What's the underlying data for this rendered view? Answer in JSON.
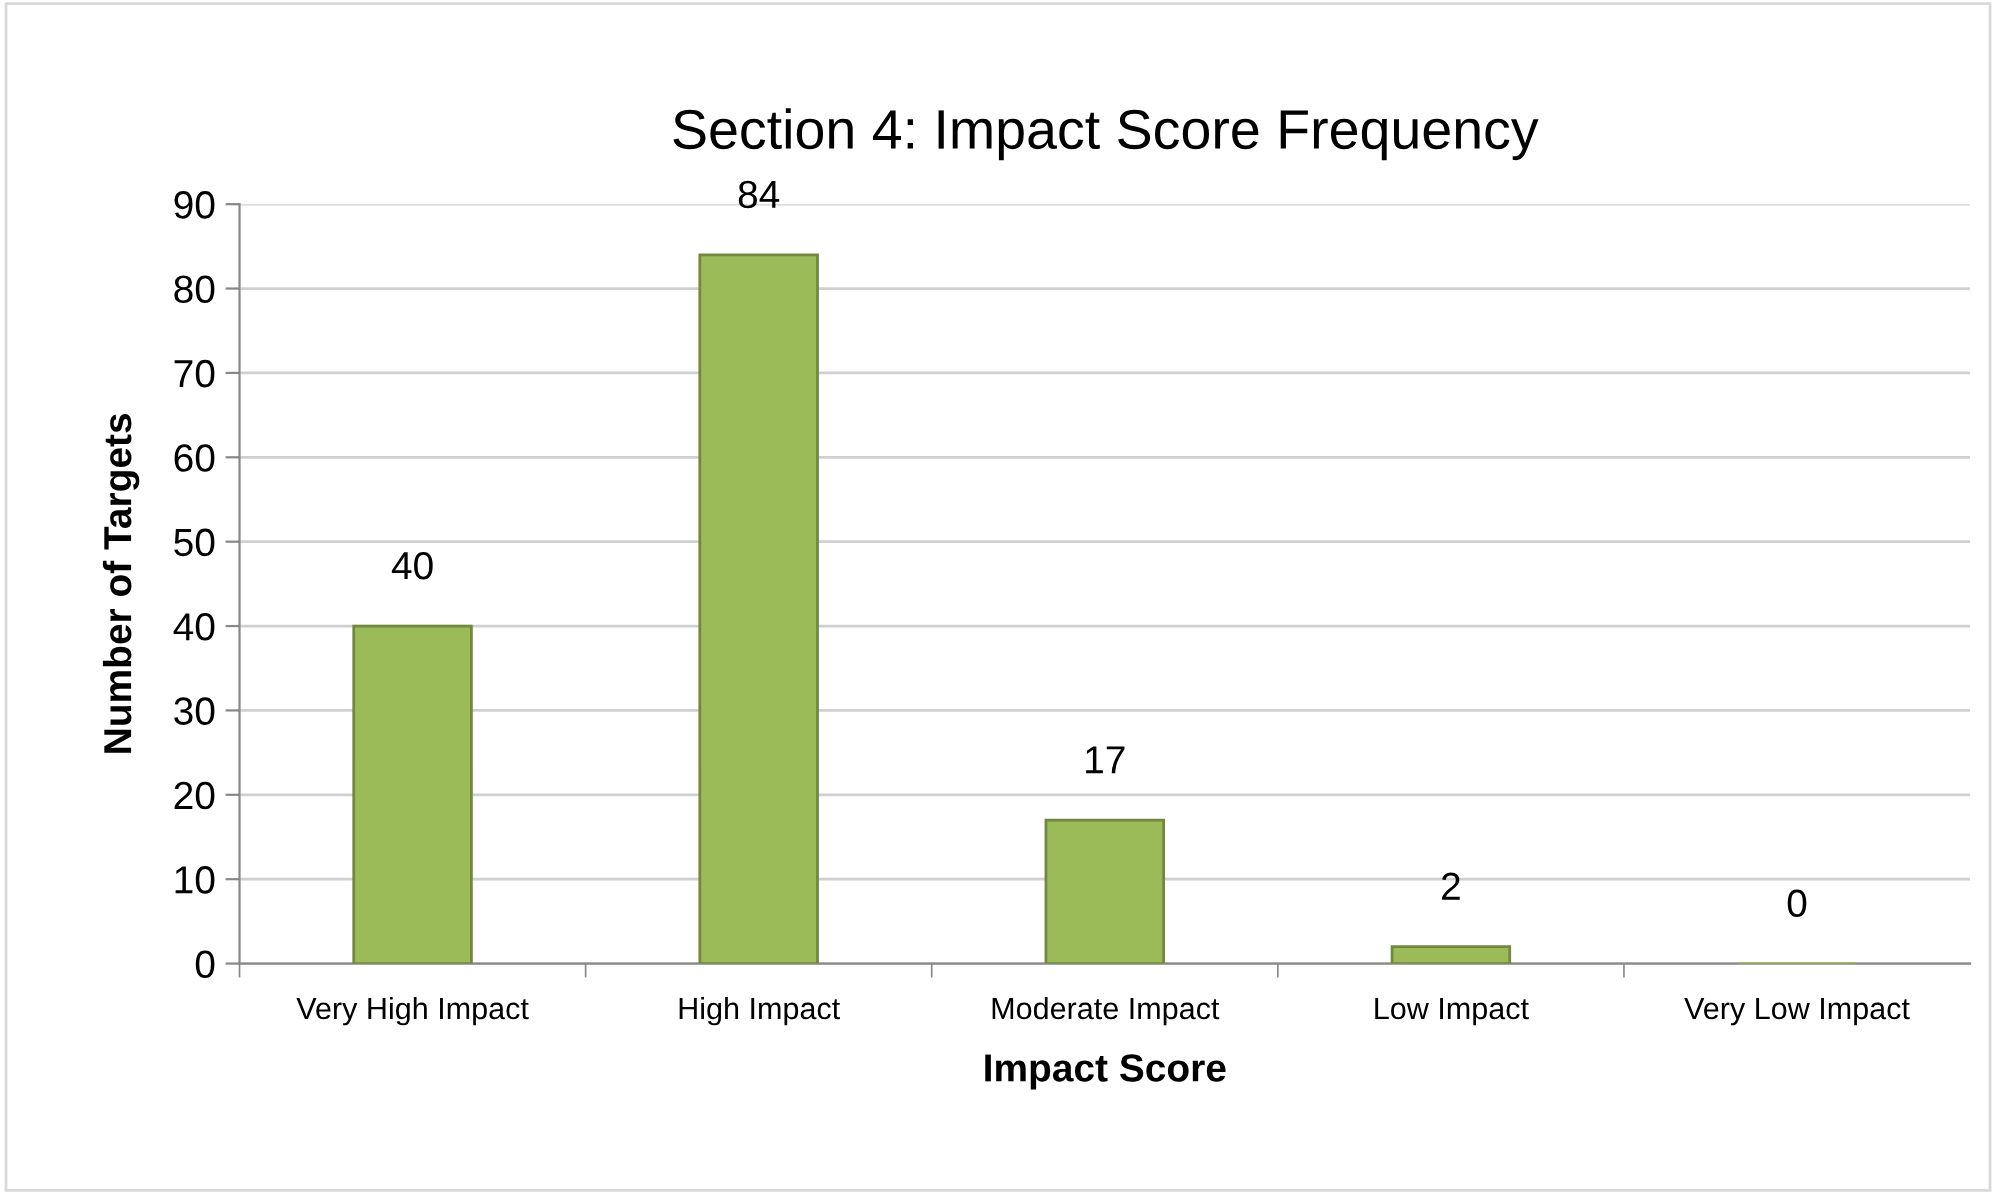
{
  "chart_data": {
    "type": "bar",
    "title": "Section 4: Impact Score Frequency",
    "xlabel": "Impact Score",
    "ylabel": "Number of Targets",
    "categories": [
      "Very High Impact",
      "High Impact",
      "Moderate Impact",
      "Low Impact",
      "Very Low Impact"
    ],
    "values": [
      40,
      84,
      17,
      2,
      0
    ],
    "color": "#9bbb59",
    "ylim": [
      0,
      90
    ],
    "yticks": [
      0,
      10,
      20,
      30,
      40,
      50,
      60,
      70,
      80,
      90
    ],
    "grid": "y",
    "data_labels": true,
    "legend": false
  }
}
